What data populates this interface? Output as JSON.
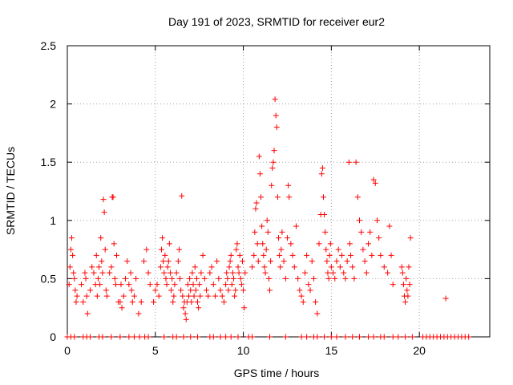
{
  "chart_data": {
    "type": "scatter",
    "title": "Day 191 of 2023, SRMTID for receiver eur2",
    "xlabel": "GPS time / hours",
    "ylabel": "SRMTID / TECUs",
    "xlim": [
      0,
      24
    ],
    "ylim": [
      0,
      2.5
    ],
    "x_ticks": [
      0,
      5,
      10,
      15,
      20
    ],
    "y_ticks": [
      0,
      0.5,
      1,
      1.5,
      2,
      2.5
    ],
    "x_tick_labels": [
      "0",
      "5",
      "10",
      "15",
      "20"
    ],
    "y_tick_labels": [
      "0",
      "0.5",
      "1",
      "1.5",
      "2",
      "2.5"
    ],
    "grid": true,
    "marker": "plus",
    "color": "#ff0000",
    "series": [
      {
        "name": "SRMTID",
        "points": [
          [
            0.1,
            0.45
          ],
          [
            0.15,
            0.6
          ],
          [
            0.2,
            0.75
          ],
          [
            0.25,
            0.85
          ],
          [
            0.3,
            0.7
          ],
          [
            0.35,
            0.55
          ],
          [
            0.4,
            0.5
          ],
          [
            0.45,
            0.4
          ],
          [
            0.5,
            0.3
          ],
          [
            0.55,
            0.35
          ],
          [
            0.8,
            0.45
          ],
          [
            0.9,
            0.3
          ],
          [
            1.0,
            0.55
          ],
          [
            1.05,
            0.5
          ],
          [
            1.1,
            0.35
          ],
          [
            1.15,
            0.2
          ],
          [
            1.3,
            0.4
          ],
          [
            1.4,
            0.6
          ],
          [
            1.5,
            0.55
          ],
          [
            1.6,
            0.45
          ],
          [
            1.65,
            0.7
          ],
          [
            1.7,
            0.35
          ],
          [
            1.75,
            0.5
          ],
          [
            1.8,
            0.6
          ],
          [
            1.85,
            0.45
          ],
          [
            1.9,
            0.85
          ],
          [
            1.95,
            0.65
          ],
          [
            2.0,
            0.55
          ],
          [
            2.05,
            1.18
          ],
          [
            2.1,
            1.07
          ],
          [
            2.15,
            0.75
          ],
          [
            2.2,
            0.4
          ],
          [
            2.25,
            0.35
          ],
          [
            2.4,
            0.55
          ],
          [
            2.5,
            0.6
          ],
          [
            2.55,
            1.2
          ],
          [
            2.6,
            1.2
          ],
          [
            2.65,
            0.8
          ],
          [
            2.7,
            0.5
          ],
          [
            2.75,
            0.45
          ],
          [
            2.8,
            0.7
          ],
          [
            2.9,
            0.3
          ],
          [
            3.0,
            0.3
          ],
          [
            3.05,
            0.45
          ],
          [
            3.1,
            0.25
          ],
          [
            3.2,
            0.35
          ],
          [
            3.3,
            0.5
          ],
          [
            3.4,
            0.65
          ],
          [
            3.5,
            0.45
          ],
          [
            3.6,
            0.55
          ],
          [
            3.65,
            0.4
          ],
          [
            3.7,
            0.3
          ],
          [
            3.8,
            0.35
          ],
          [
            3.9,
            0.5
          ],
          [
            4.05,
            0.2
          ],
          [
            4.2,
            0.3
          ],
          [
            4.35,
            0.65
          ],
          [
            4.5,
            0.75
          ],
          [
            4.6,
            0.55
          ],
          [
            4.7,
            0.45
          ],
          [
            4.9,
            0.3
          ],
          [
            5.0,
            0.4
          ],
          [
            5.1,
            0.45
          ],
          [
            5.2,
            0.35
          ],
          [
            5.3,
            0.6
          ],
          [
            5.35,
            0.75
          ],
          [
            5.4,
            0.85
          ],
          [
            5.45,
            0.65
          ],
          [
            5.5,
            0.55
          ],
          [
            5.55,
            0.7
          ],
          [
            5.6,
            0.5
          ],
          [
            5.65,
            0.45
          ],
          [
            5.7,
            0.6
          ],
          [
            5.75,
            0.65
          ],
          [
            5.8,
            0.8
          ],
          [
            5.85,
            0.55
          ],
          [
            5.9,
            0.4
          ],
          [
            5.95,
            0.5
          ],
          [
            6.0,
            0.3
          ],
          [
            6.05,
            0.35
          ],
          [
            6.1,
            0.45
          ],
          [
            6.2,
            0.55
          ],
          [
            6.3,
            0.65
          ],
          [
            6.35,
            0.75
          ],
          [
            6.4,
            0.5
          ],
          [
            6.45,
            0.4
          ],
          [
            6.5,
            1.21
          ],
          [
            6.55,
            0.35
          ],
          [
            6.6,
            0.25
          ],
          [
            6.65,
            0.3
          ],
          [
            6.7,
            0.2
          ],
          [
            6.75,
            0.15
          ],
          [
            6.8,
            0.3
          ],
          [
            6.85,
            0.45
          ],
          [
            6.9,
            0.35
          ],
          [
            6.95,
            0.5
          ],
          [
            7.0,
            0.4
          ],
          [
            7.05,
            0.3
          ],
          [
            7.1,
            0.55
          ],
          [
            7.15,
            0.45
          ],
          [
            7.2,
            0.35
          ],
          [
            7.25,
            0.6
          ],
          [
            7.3,
            0.4
          ],
          [
            7.35,
            0.5
          ],
          [
            7.4,
            0.3
          ],
          [
            7.45,
            0.25
          ],
          [
            7.5,
            0.45
          ],
          [
            7.55,
            0.35
          ],
          [
            7.6,
            0.55
          ],
          [
            7.7,
            0.7
          ],
          [
            7.8,
            0.5
          ],
          [
            7.9,
            0.4
          ],
          [
            8.0,
            0.35
          ],
          [
            8.1,
            0.55
          ],
          [
            8.2,
            0.6
          ],
          [
            8.3,
            0.45
          ],
          [
            8.4,
            0.35
          ],
          [
            8.5,
            0.65
          ],
          [
            8.6,
            0.5
          ],
          [
            8.7,
            0.4
          ],
          [
            8.8,
            0.35
          ],
          [
            8.9,
            0.3
          ],
          [
            9.0,
            0.45
          ],
          [
            9.05,
            0.55
          ],
          [
            9.1,
            0.5
          ],
          [
            9.15,
            0.4
          ],
          [
            9.2,
            0.6
          ],
          [
            9.25,
            0.65
          ],
          [
            9.3,
            0.7
          ],
          [
            9.35,
            0.45
          ],
          [
            9.4,
            0.55
          ],
          [
            9.45,
            0.5
          ],
          [
            9.5,
            0.35
          ],
          [
            9.55,
            0.4
          ],
          [
            9.6,
            0.75
          ],
          [
            9.65,
            0.8
          ],
          [
            9.7,
            0.6
          ],
          [
            9.75,
            0.55
          ],
          [
            9.8,
            0.7
          ],
          [
            9.85,
            0.5
          ],
          [
            9.9,
            0.45
          ],
          [
            9.95,
            0.65
          ],
          [
            10.0,
            0.4
          ],
          [
            10.05,
            0.25
          ],
          [
            10.1,
            0.55
          ],
          [
            10.5,
            0.6
          ],
          [
            10.6,
            0.7
          ],
          [
            10.65,
            0.9
          ],
          [
            10.7,
            1.1
          ],
          [
            10.75,
            1.15
          ],
          [
            10.8,
            0.8
          ],
          [
            10.85,
            0.65
          ],
          [
            10.9,
            1.55
          ],
          [
            10.95,
            1.4
          ],
          [
            11.0,
            1.2
          ],
          [
            11.05,
            0.95
          ],
          [
            11.1,
            0.8
          ],
          [
            11.15,
            0.7
          ],
          [
            11.2,
            0.6
          ],
          [
            11.25,
            0.55
          ],
          [
            11.3,
            0.75
          ],
          [
            11.35,
            1.0
          ],
          [
            11.4,
            0.9
          ],
          [
            11.45,
            0.5
          ],
          [
            11.5,
            0.4
          ],
          [
            11.55,
            0.65
          ],
          [
            11.6,
            1.3
          ],
          [
            11.65,
            1.45
          ],
          [
            11.7,
            1.5
          ],
          [
            11.75,
            1.6
          ],
          [
            11.8,
            2.04
          ],
          [
            11.85,
            1.9
          ],
          [
            11.9,
            1.8
          ],
          [
            11.95,
            1.2
          ],
          [
            12.0,
            0.85
          ],
          [
            12.05,
            0.7
          ],
          [
            12.1,
            0.6
          ],
          [
            12.15,
            0.75
          ],
          [
            12.2,
            0.9
          ],
          [
            12.3,
            0.65
          ],
          [
            12.4,
            0.5
          ],
          [
            12.5,
            0.85
          ],
          [
            12.55,
            1.3
          ],
          [
            12.6,
            1.2
          ],
          [
            12.7,
            0.8
          ],
          [
            12.8,
            0.7
          ],
          [
            12.9,
            0.6
          ],
          [
            13.0,
            0.95
          ],
          [
            13.1,
            0.5
          ],
          [
            13.2,
            0.4
          ],
          [
            13.3,
            0.35
          ],
          [
            13.4,
            0.3
          ],
          [
            13.5,
            0.55
          ],
          [
            13.6,
            0.7
          ],
          [
            13.7,
            0.45
          ],
          [
            13.8,
            0.4
          ],
          [
            13.9,
            0.65
          ],
          [
            14.0,
            0.5
          ],
          [
            14.1,
            0.3
          ],
          [
            14.2,
            0.2
          ],
          [
            14.3,
            0.8
          ],
          [
            14.4,
            1.05
          ],
          [
            14.45,
            1.4
          ],
          [
            14.5,
            1.45
          ],
          [
            14.55,
            1.2
          ],
          [
            14.6,
            1.05
          ],
          [
            14.65,
            0.9
          ],
          [
            14.7,
            0.75
          ],
          [
            14.75,
            0.65
          ],
          [
            14.8,
            0.55
          ],
          [
            14.85,
            0.5
          ],
          [
            14.9,
            0.7
          ],
          [
            14.95,
            0.8
          ],
          [
            15.0,
            0.6
          ],
          [
            15.1,
            0.55
          ],
          [
            15.2,
            0.5
          ],
          [
            15.3,
            0.65
          ],
          [
            15.4,
            0.75
          ],
          [
            15.5,
            0.6
          ],
          [
            15.6,
            0.7
          ],
          [
            15.7,
            0.55
          ],
          [
            15.8,
            0.5
          ],
          [
            15.9,
            0.65
          ],
          [
            16.0,
            1.5
          ],
          [
            16.05,
            0.8
          ],
          [
            16.1,
            0.7
          ],
          [
            16.2,
            0.6
          ],
          [
            16.3,
            0.5
          ],
          [
            16.4,
            1.5
          ],
          [
            16.5,
            1.2
          ],
          [
            16.6,
            1.0
          ],
          [
            16.7,
            0.9
          ],
          [
            16.8,
            0.75
          ],
          [
            16.9,
            0.65
          ],
          [
            17.0,
            0.55
          ],
          [
            17.1,
            0.8
          ],
          [
            17.2,
            0.9
          ],
          [
            17.3,
            0.7
          ],
          [
            17.4,
            1.35
          ],
          [
            17.5,
            1.32
          ],
          [
            17.6,
            1.0
          ],
          [
            17.7,
            0.85
          ],
          [
            17.8,
            0.7
          ],
          [
            18.0,
            0.6
          ],
          [
            18.2,
            0.55
          ],
          [
            18.3,
            0.95
          ],
          [
            18.4,
            0.7
          ],
          [
            18.5,
            0.45
          ],
          [
            19.0,
            0.6
          ],
          [
            19.05,
            0.55
          ],
          [
            19.1,
            0.45
          ],
          [
            19.15,
            0.35
          ],
          [
            19.2,
            0.3
          ],
          [
            19.25,
            0.5
          ],
          [
            19.3,
            0.4
          ],
          [
            19.35,
            0.35
          ],
          [
            19.4,
            0.6
          ],
          [
            19.45,
            0.45
          ],
          [
            19.5,
            0.85
          ],
          [
            21.5,
            0.33
          ],
          [
            0.0,
            0
          ],
          [
            0.2,
            0
          ],
          [
            0.4,
            0
          ],
          [
            0.9,
            0
          ],
          [
            1.1,
            0
          ],
          [
            1.3,
            0
          ],
          [
            1.8,
            0
          ],
          [
            2.0,
            0
          ],
          [
            2.5,
            0
          ],
          [
            3.0,
            0
          ],
          [
            3.5,
            0
          ],
          [
            3.8,
            0
          ],
          [
            4.1,
            0
          ],
          [
            4.4,
            0
          ],
          [
            4.6,
            0
          ],
          [
            5.5,
            0
          ],
          [
            6.0,
            0
          ],
          [
            6.2,
            0
          ],
          [
            6.6,
            0
          ],
          [
            7.0,
            0
          ],
          [
            7.4,
            0
          ],
          [
            8.1,
            0
          ],
          [
            8.3,
            0
          ],
          [
            8.7,
            0
          ],
          [
            9.0,
            0
          ],
          [
            9.3,
            0
          ],
          [
            9.7,
            0
          ],
          [
            10.3,
            0
          ],
          [
            10.5,
            0
          ],
          [
            11.5,
            0
          ],
          [
            12.4,
            0
          ],
          [
            13.3,
            0
          ],
          [
            13.6,
            0
          ],
          [
            14.0,
            0
          ],
          [
            14.2,
            0
          ],
          [
            14.6,
            0
          ],
          [
            15.0,
            0
          ],
          [
            15.3,
            0
          ],
          [
            15.8,
            0
          ],
          [
            16.2,
            0
          ],
          [
            16.6,
            0
          ],
          [
            17.1,
            0
          ],
          [
            17.4,
            0
          ],
          [
            17.8,
            0
          ],
          [
            18.0,
            0
          ],
          [
            18.5,
            0
          ],
          [
            18.8,
            0
          ],
          [
            19.2,
            0
          ],
          [
            19.6,
            0
          ],
          [
            20.2,
            0
          ],
          [
            20.4,
            0
          ],
          [
            20.6,
            0
          ],
          [
            20.8,
            0
          ],
          [
            21.0,
            0
          ],
          [
            21.2,
            0
          ],
          [
            21.4,
            0
          ],
          [
            21.6,
            0
          ],
          [
            21.8,
            0
          ],
          [
            22.0,
            0
          ],
          [
            22.2,
            0
          ],
          [
            22.4,
            0
          ],
          [
            22.6,
            0
          ],
          [
            22.8,
            0
          ]
        ]
      }
    ]
  }
}
